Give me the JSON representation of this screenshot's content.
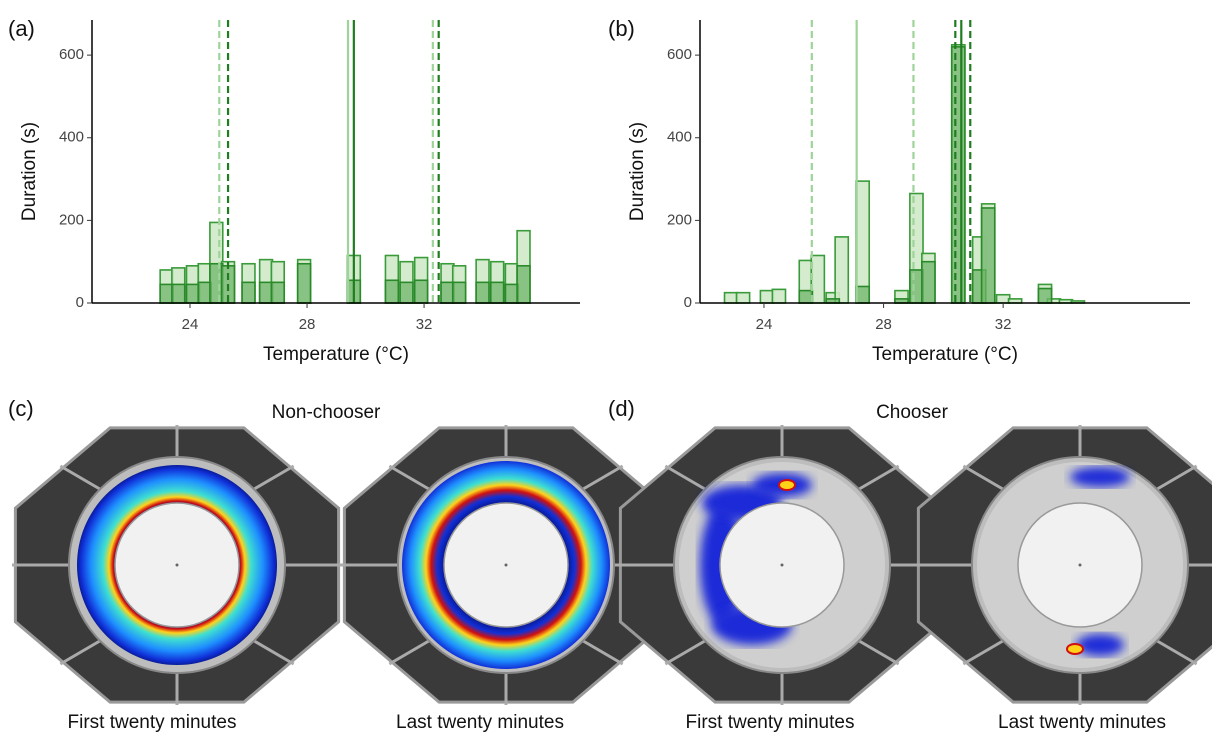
{
  "chart_data": [
    {
      "type": "bar",
      "panel": "(a)",
      "ylabel": "Duration (s)",
      "xlabel": "Temperature (°C)",
      "xlim": [
        20.65,
        37.33
      ],
      "ylim": [
        0,
        685
      ],
      "xticks": [
        24,
        28,
        32
      ],
      "yticks": [
        0,
        200,
        400,
        600
      ],
      "x": [
        23.2,
        23.6,
        24.1,
        24.5,
        24.9,
        25.3,
        26.0,
        26.6,
        27.0,
        27.9,
        29.6,
        30.9,
        31.4,
        31.9,
        32.8,
        33.2,
        34.0,
        34.5,
        35.0,
        35.4
      ],
      "series": [
        {
          "color": "#cfeac8",
          "values": [
            80,
            85,
            90,
            95,
            195,
            100,
            95,
            105,
            100,
            105,
            115,
            115,
            100,
            110,
            95,
            90,
            105,
            100,
            95,
            175
          ]
        },
        {
          "color": "#6fb56a",
          "values": [
            45,
            45,
            45,
            50,
            95,
            90,
            50,
            50,
            50,
            95,
            55,
            55,
            50,
            55,
            50,
            50,
            50,
            50,
            45,
            90
          ]
        }
      ],
      "vlines": [
        {
          "x": 25.0,
          "color": "#9ed49a",
          "dashed": true
        },
        {
          "x": 25.3,
          "color": "#1f7d1f",
          "dashed": true
        },
        {
          "x": 29.4,
          "color": "#9ed49a",
          "dashed": false
        },
        {
          "x": 29.6,
          "color": "#1f7d1f",
          "dashed": false
        },
        {
          "x": 32.3,
          "color": "#9ed49a",
          "dashed": true
        },
        {
          "x": 32.5,
          "color": "#1f7d1f",
          "dashed": true
        }
      ]
    },
    {
      "type": "bar",
      "panel": "(b)",
      "ylabel": "Duration (s)",
      "xlabel": "Temperature (°C)",
      "xlim": [
        21.86,
        38.25
      ],
      "ylim": [
        0,
        685
      ],
      "xticks": [
        24,
        28,
        32
      ],
      "yticks": [
        0,
        200,
        400,
        600
      ],
      "x": [
        22.9,
        23.3,
        24.1,
        24.5,
        25.4,
        25.8,
        26.3,
        26.6,
        27.3,
        28.6,
        29.1,
        29.5,
        30.5,
        31.2,
        31.5,
        32.0,
        32.4,
        33.4,
        33.7,
        34.1,
        34.5
      ],
      "series": [
        {
          "color": "#cfeac8",
          "values": [
            25,
            25,
            30,
            33,
            103,
            115,
            25,
            160,
            295,
            30,
            265,
            120,
            625,
            160,
            240,
            20,
            10,
            45,
            10,
            8,
            5
          ]
        },
        {
          "color": "#6fb56a",
          "values": [
            null,
            null,
            null,
            null,
            30,
            null,
            10,
            null,
            40,
            10,
            80,
            100,
            620,
            80,
            230,
            null,
            null,
            35,
            null,
            null,
            null
          ]
        }
      ],
      "vlines": [
        {
          "x": 25.6,
          "color": "#9ed49a",
          "dashed": true
        },
        {
          "x": 27.1,
          "color": "#9ed49a",
          "dashed": false
        },
        {
          "x": 29.0,
          "color": "#9ed49a",
          "dashed": true
        },
        {
          "x": 30.4,
          "color": "#1f7d1f",
          "dashed": true
        },
        {
          "x": 30.6,
          "color": "#1f7d1f",
          "dashed": false
        },
        {
          "x": 30.9,
          "color": "#1f7d1f",
          "dashed": true
        }
      ]
    }
  ],
  "images": {
    "c": {
      "panel": "(c)",
      "title": "Non-chooser",
      "captions": [
        "First twenty minutes",
        "Last twenty minutes"
      ]
    },
    "d": {
      "panel": "(d)",
      "title": "Chooser",
      "captions": [
        "First twenty minutes",
        "Last twenty minutes"
      ]
    }
  }
}
